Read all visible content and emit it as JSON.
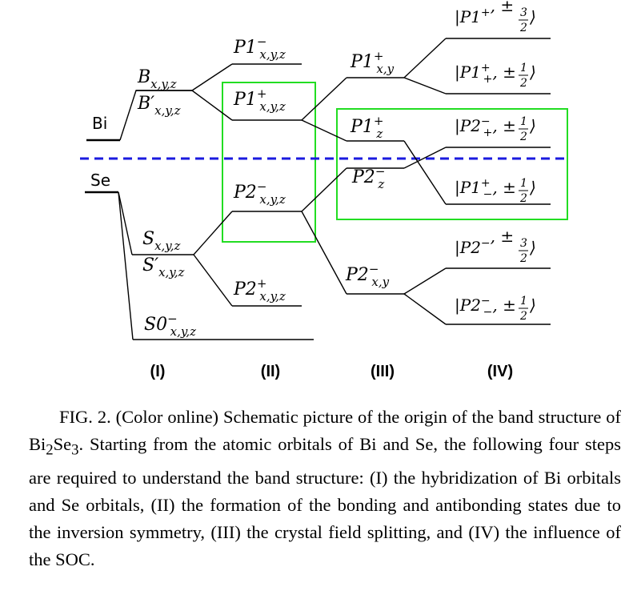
{
  "atoms": {
    "bi": "Bi",
    "se": "Se"
  },
  "steps": [
    "(I)",
    "(II)",
    "(III)",
    "(IV)"
  ],
  "stage1": {
    "b": {
      "main": "B",
      "sub": "x,y,z"
    },
    "bp": {
      "main": "B′",
      "sub": "x,y,z"
    },
    "s": {
      "main": "S",
      "sub": "x,y,z"
    },
    "sp": {
      "main": "S′",
      "sub": "x,y,z"
    },
    "s0": {
      "main": "S0",
      "sup": "−",
      "sub": "x,y,z"
    }
  },
  "stage2": {
    "p1m": {
      "main": "P1",
      "sup": "−",
      "sub": "x,y,z"
    },
    "p1p": {
      "main": "P1",
      "sup": "+",
      "sub": "x,y,z"
    },
    "p2m": {
      "main": "P2",
      "sup": "−",
      "sub": "x,y,z"
    },
    "p2p": {
      "main": "P2",
      "sup": "+",
      "sub": "x,y,z"
    }
  },
  "stage3": {
    "p1pxy": {
      "main": "P1",
      "sup": "+",
      "sub": "x,y"
    },
    "p1pz": {
      "main": "P1",
      "sup": "+",
      "sub": "z"
    },
    "p2mz": {
      "main": "P2",
      "sup": "−",
      "sub": "z"
    },
    "p2mxy": {
      "main": "P2",
      "sup": "−",
      "sub": "x,y"
    }
  },
  "stage4": {
    "k1": {
      "pre": "|P1",
      "sup": "+",
      "sub": "",
      "mid": ", ±",
      "num": "3",
      "den": "2",
      "post": "⟩"
    },
    "k2": {
      "pre": "|P1",
      "sup": "+",
      "sub": "+",
      "mid": ", ±",
      "num": "1",
      "den": "2",
      "post": "⟩"
    },
    "k3": {
      "pre": "|P2",
      "sup": "−",
      "sub": "+",
      "mid": ", ±",
      "num": "1",
      "den": "2",
      "post": "⟩"
    },
    "k4": {
      "pre": "|P1",
      "sup": "+",
      "sub": "−",
      "mid": ", ±",
      "num": "1",
      "den": "2",
      "post": "⟩"
    },
    "k5": {
      "pre": "|P2",
      "sup": "−",
      "sub": "",
      "mid": ", ±",
      "num": "3",
      "den": "2",
      "post": "⟩"
    },
    "k6": {
      "pre": "|P2",
      "sup": "−",
      "sub": "−",
      "mid": ", ±",
      "num": "1",
      "den": "2",
      "post": "⟩"
    }
  },
  "colors": {
    "fermi_line": "#1a1adf",
    "highlight_box": "#22dd22",
    "line": "#000000"
  },
  "caption": {
    "fig_label": "FIG. 2.",
    "text_a": " (Color online) Schematic picture of the origin of the band structure of Bi",
    "sub1": "2",
    "text_b": "Se",
    "sub2": "3",
    "text_c": ". Starting from the atomic orbitals of Bi and Se, the following four steps are required to understand the band structure: (I) the hybridization of Bi orbitals and Se orbitals, (II) the formation of the bonding and antibonding states due to the inversion symmetry, (III) the crystal field splitting, and (IV) the influence of the SOC."
  }
}
